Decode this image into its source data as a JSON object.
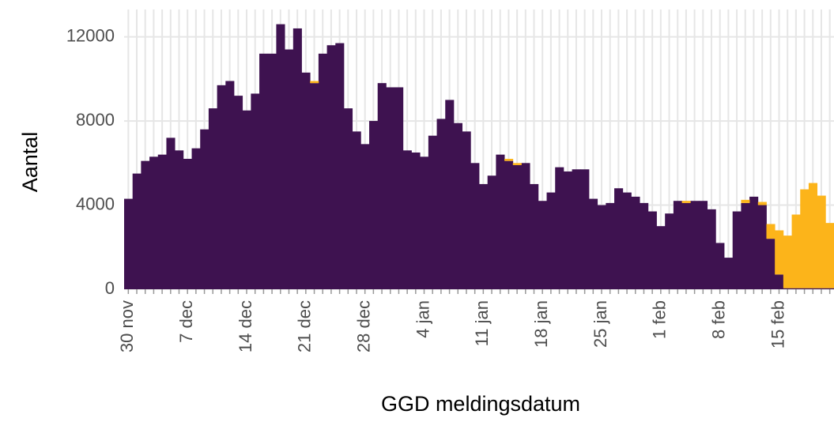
{
  "chart_data": {
    "type": "stacked-bar",
    "x_label": "GGD meldingsdatum",
    "y_label": "Aantal",
    "categories": [
      "30 nov",
      null,
      null,
      null,
      null,
      null,
      null,
      "7 dec",
      null,
      null,
      null,
      null,
      null,
      null,
      "14 dec",
      null,
      null,
      null,
      null,
      null,
      null,
      "21 dec",
      null,
      null,
      null,
      null,
      null,
      null,
      "28 dec",
      null,
      null,
      null,
      null,
      null,
      null,
      "4 jan",
      null,
      null,
      null,
      null,
      null,
      null,
      "11 jan",
      null,
      null,
      null,
      null,
      null,
      null,
      "18 jan",
      null,
      null,
      null,
      null,
      null,
      null,
      "25 jan",
      null,
      null,
      null,
      null,
      null,
      null,
      "1 feb",
      null,
      null,
      null,
      null,
      null,
      null,
      "8 feb",
      null,
      null,
      null,
      null,
      null,
      null,
      "15 feb",
      null,
      null,
      null,
      null,
      null,
      null
    ],
    "series": [
      {
        "color": "#3e1250",
        "values": [
          4300,
          5500,
          6100,
          6300,
          6400,
          7200,
          6600,
          6200,
          6700,
          7600,
          8600,
          9700,
          9900,
          9200,
          8500,
          9300,
          11200,
          11200,
          12600,
          11400,
          12400,
          10300,
          9800,
          11200,
          11600,
          11700,
          8600,
          7500,
          6900,
          8000,
          9800,
          9600,
          9600,
          6600,
          6500,
          6300,
          7300,
          8100,
          9000,
          7900,
          7500,
          6000,
          5000,
          5400,
          6400,
          6100,
          5900,
          6000,
          5000,
          4200,
          4600,
          5800,
          5600,
          5700,
          5700,
          4300,
          4000,
          4100,
          4800,
          4600,
          4400,
          4100,
          3700,
          3000,
          3600,
          4200,
          4100,
          4200,
          4200,
          3800,
          2200,
          1500,
          3700,
          4100,
          4400,
          4000,
          2400,
          700,
          50,
          50,
          50,
          50,
          50,
          50
        ]
      },
      {
        "color": "#fcb41a",
        "values": [
          0,
          0,
          0,
          0,
          0,
          0,
          0,
          0,
          0,
          0,
          0,
          0,
          0,
          0,
          0,
          0,
          0,
          0,
          0,
          0,
          0,
          0,
          100,
          0,
          0,
          0,
          0,
          0,
          0,
          0,
          0,
          0,
          0,
          0,
          0,
          0,
          0,
          0,
          0,
          0,
          0,
          0,
          0,
          0,
          0,
          100,
          100,
          0,
          0,
          0,
          0,
          0,
          0,
          0,
          0,
          0,
          0,
          0,
          0,
          0,
          0,
          0,
          0,
          0,
          0,
          0,
          100,
          0,
          0,
          0,
          0,
          0,
          0,
          150,
          0,
          150,
          700,
          2100,
          2500,
          3500,
          4700,
          5000,
          4400,
          3100
        ]
      }
    ],
    "ylim": [
      0,
      13300
    ],
    "yticks": [
      0,
      4000,
      8000,
      12000
    ],
    "grid": true
  }
}
